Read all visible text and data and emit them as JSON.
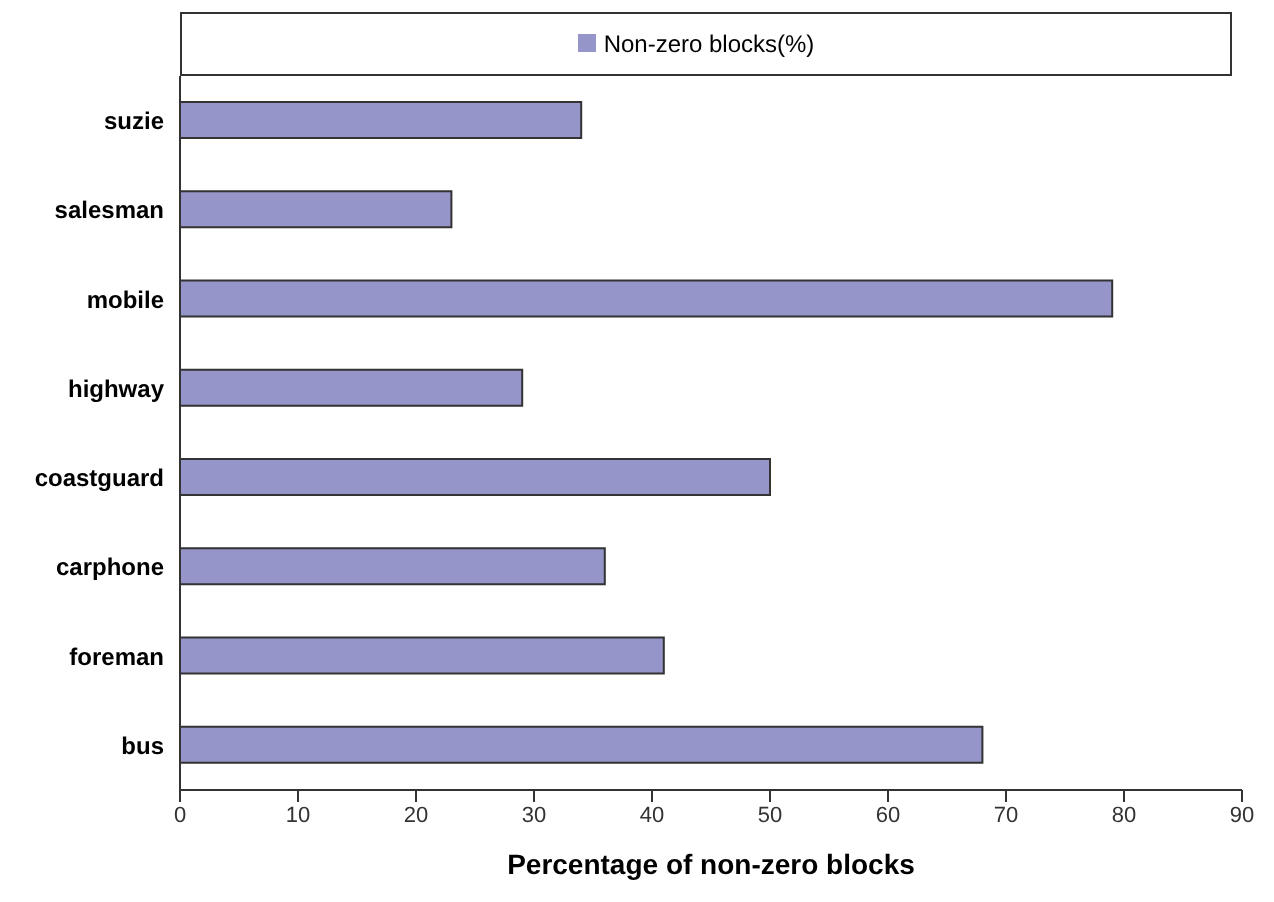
{
  "chart_data": {
    "type": "bar",
    "orientation": "horizontal",
    "xlabel": "Percentage of non-zero blocks",
    "categories": [
      "suzie",
      "salesman",
      "mobile",
      "highway",
      "coastguard",
      "carphone",
      "foreman",
      "bus"
    ],
    "series": [
      {
        "name": "Non-zero blocks(%)",
        "color": "#9595c9",
        "values": [
          34,
          23,
          79,
          29,
          50,
          36,
          41,
          68
        ]
      }
    ],
    "xlim": [
      0,
      90
    ],
    "xticks": [
      0,
      10,
      20,
      30,
      40,
      50,
      60,
      70,
      80,
      90
    ],
    "grid": false,
    "legend": "top"
  }
}
